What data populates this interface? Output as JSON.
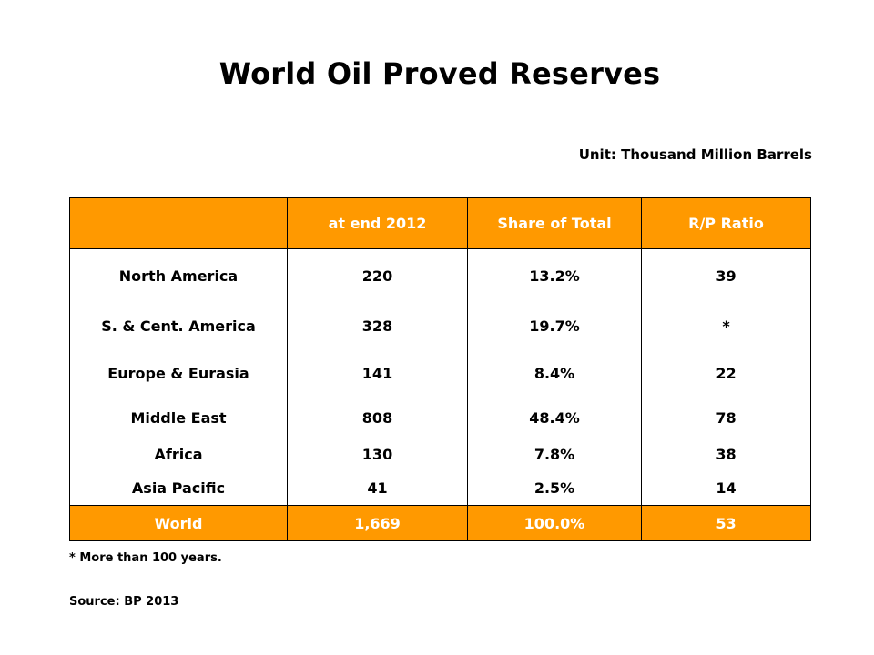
{
  "title": "World Oil Proved Reserves",
  "unit": {
    "label": "Unit:",
    "value": "Thousand Million Barrels"
  },
  "table": {
    "headers": [
      "",
      "at end 2012",
      "Share of Total",
      "R/P Ratio"
    ],
    "rows": [
      [
        "North America",
        "220",
        "13.2%",
        "39"
      ],
      [
        "S. & Cent. America",
        "328",
        "19.7%",
        "*"
      ],
      [
        "Europe & Eurasia",
        "141",
        "8.4%",
        "22"
      ],
      [
        "Middle East",
        "808",
        "48.4%",
        "78"
      ],
      [
        "Africa",
        "130",
        "7.8%",
        "38"
      ],
      [
        "Asia Pacific",
        "41",
        "2.5%",
        "14"
      ]
    ],
    "total": [
      "World",
      "1,669",
      "100.0%",
      "53"
    ]
  },
  "footnote": "* More than 100 years.",
  "source": "Source: BP 2013",
  "colors": {
    "header_bg": "#ff9900",
    "header_text": "#ffffff",
    "border": "#000000"
  }
}
